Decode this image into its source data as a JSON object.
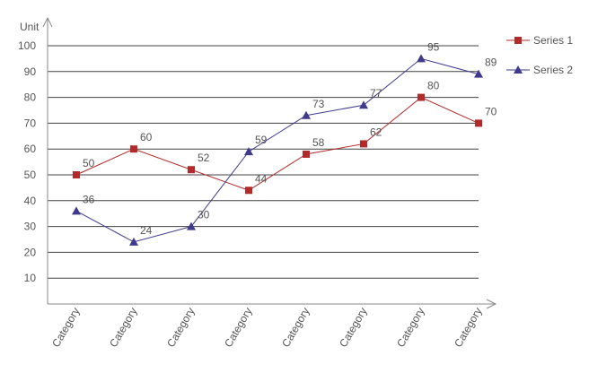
{
  "chart_data": {
    "type": "line",
    "ylabel": "Unit",
    "xlabel": "",
    "ylim": [
      0,
      100
    ],
    "yticks": [
      10,
      20,
      30,
      40,
      50,
      60,
      70,
      80,
      90,
      100
    ],
    "grid": true,
    "legend_position": "top-right",
    "categories": [
      "Category",
      "Category",
      "Category",
      "Category",
      "Category",
      "Category",
      "Category",
      "Category"
    ],
    "series": [
      {
        "name": "Series 1",
        "marker": "square",
        "color": "#b22a2a",
        "values": [
          50,
          60,
          52,
          44,
          58,
          62,
          80,
          70
        ]
      },
      {
        "name": "Series 2",
        "marker": "triangle",
        "color": "#3f3a8c",
        "values": [
          36,
          24,
          30,
          59,
          73,
          77,
          95,
          89
        ]
      }
    ]
  }
}
